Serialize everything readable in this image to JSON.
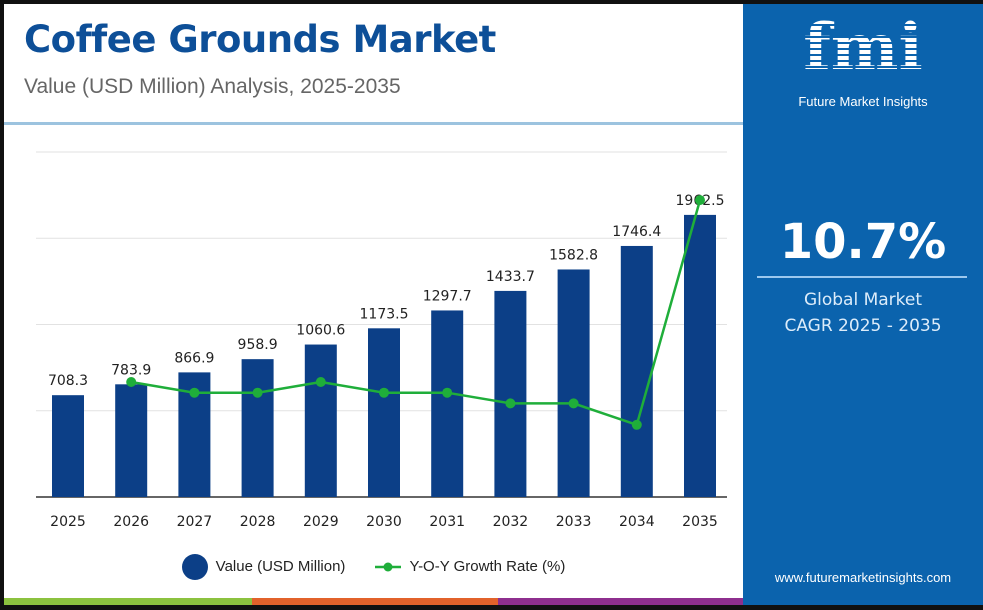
{
  "header": {
    "title": "Coffee Grounds Market",
    "subtitle": "Value (USD Million) Analysis, 2025-2035"
  },
  "sidebar": {
    "logo_text": "fmi",
    "logo_subtitle": "Future Market Insights",
    "cagr_value": "10.7%",
    "cagr_label_1": "Global Market",
    "cagr_label_2": "CAGR 2025 - 2035",
    "url": "www.futuremarketinsights.com"
  },
  "colors": {
    "bar": "#0c3f87",
    "line": "#1fae3a",
    "panel": "#0b63ad",
    "title": "#0d4f98",
    "strip": [
      "#8cc23f",
      "#e2622b",
      "#8e2f8e"
    ]
  },
  "chart_data": {
    "type": "bar+line",
    "categories": [
      "2025",
      "2026",
      "2027",
      "2028",
      "2029",
      "2030",
      "2031",
      "2032",
      "2033",
      "2034",
      "2035"
    ],
    "series": [
      {
        "name": "Value (USD Million)",
        "type": "bar",
        "values": [
          708.3,
          783.9,
          866.9,
          958.9,
          1060.6,
          1173.5,
          1297.7,
          1433.7,
          1582.8,
          1746.4,
          1962.5
        ]
      },
      {
        "name": "Y-O-Y Growth Rate (%)",
        "type": "line",
        "values": [
          null,
          10.7,
          10.6,
          10.6,
          10.7,
          10.6,
          10.6,
          10.5,
          10.5,
          10.3,
          12.4
        ]
      }
    ],
    "ylim": [
      0,
      2400
    ],
    "grid": true,
    "legend": "bottom"
  }
}
